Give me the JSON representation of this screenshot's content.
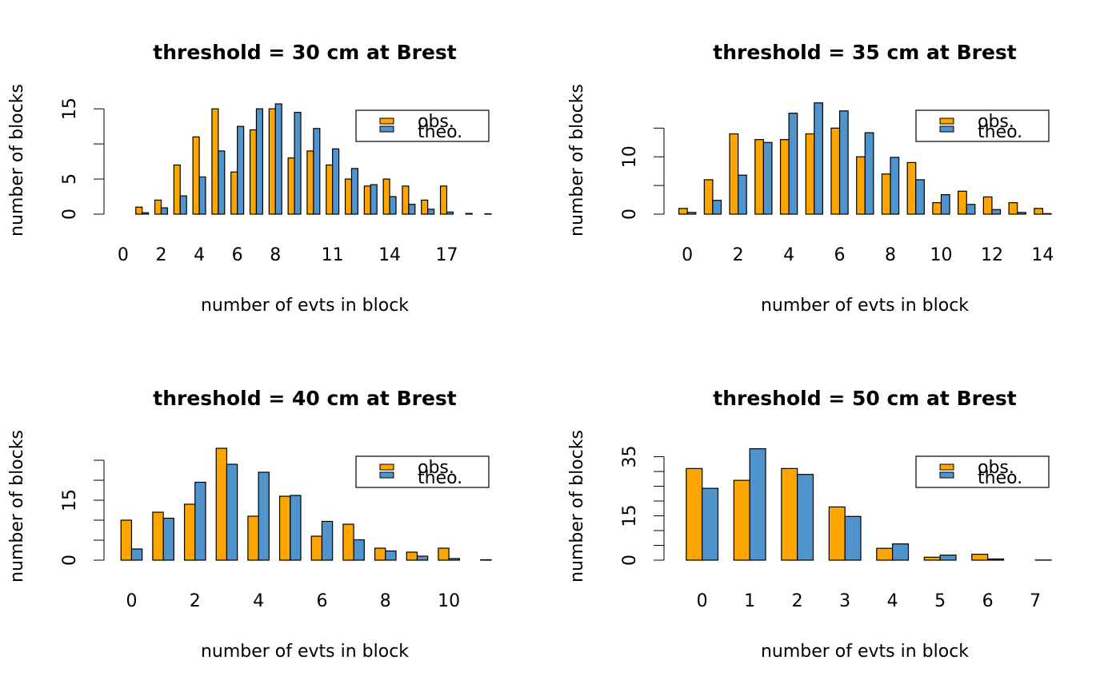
{
  "chart_data": [
    {
      "type": "bar",
      "title": "threshold = 30 cm at Brest",
      "x_label": "number of evts in block",
      "y_label": "number of blocks",
      "categories": [
        "0",
        null,
        "2",
        null,
        "4",
        null,
        "6",
        null,
        "8",
        null,
        null,
        "11",
        null,
        null,
        "14",
        null,
        null,
        "17",
        null,
        null
      ],
      "series": [
        {
          "name": "obs.",
          "color": "#FFA500",
          "values": [
            0,
            1,
            2,
            7,
            11,
            15,
            6,
            12,
            15,
            8,
            9,
            7,
            5,
            4,
            5,
            4,
            2,
            4,
            0,
            0
          ]
        },
        {
          "name": "theo.",
          "color": "#4F94CD",
          "values": [
            0,
            0.2,
            0.9,
            2.6,
            5.3,
            9,
            12.5,
            15,
            15.7,
            14.5,
            12.2,
            9.3,
            6.5,
            4.2,
            2.5,
            1.4,
            0.7,
            0.3,
            0.1,
            0.05
          ]
        }
      ],
      "ylim": [
        0,
        16.5
      ],
      "yticks": [
        0,
        5,
        {
          "value": 10,
          "label": null
        },
        15
      ],
      "legend": "topright"
    },
    {
      "type": "bar",
      "title": "threshold = 35 cm at Brest",
      "x_label": "number of evts in block",
      "y_label": "number of blocks",
      "categories": [
        "0",
        null,
        "2",
        null,
        "4",
        null,
        "6",
        null,
        "8",
        null,
        "10",
        null,
        "12",
        null,
        "14"
      ],
      "series": [
        {
          "name": "obs.",
          "color": "#FFA500",
          "values": [
            1,
            6,
            14,
            13,
            13,
            14,
            15,
            10,
            7,
            9,
            2,
            4,
            3,
            2,
            1
          ]
        },
        {
          "name": "theo.",
          "color": "#4F94CD",
          "values": [
            0.3,
            2.4,
            6.8,
            12.5,
            17.6,
            19.4,
            18,
            14.2,
            9.9,
            6,
            3.4,
            1.7,
            0.8,
            0.3,
            0.1
          ]
        }
      ],
      "ylim": [
        0,
        20.2
      ],
      "yticks": [
        0,
        {
          "value": 5,
          "label": null
        },
        10,
        {
          "value": 15,
          "label": null
        }
      ],
      "legend": "topright"
    },
    {
      "type": "bar",
      "title": "threshold = 40 cm at Brest",
      "x_label": "number of evts in block",
      "y_label": "number of blocks",
      "categories": [
        "0",
        null,
        "2",
        null,
        "4",
        null,
        "6",
        null,
        "8",
        null,
        "10",
        null
      ],
      "series": [
        {
          "name": "obs.",
          "color": "#FFA500",
          "values": [
            10,
            12,
            14,
            28,
            11,
            16,
            6,
            9,
            3,
            2,
            3,
            0
          ]
        },
        {
          "name": "theo.",
          "color": "#4F94CD",
          "values": [
            2.8,
            10.5,
            19.5,
            24,
            22,
            16.2,
            9.7,
            5.1,
            2.3,
            1,
            0.4,
            0.1
          ]
        }
      ],
      "ylim": [
        0,
        29
      ],
      "yticks": [
        0,
        {
          "value": 5,
          "label": null
        },
        {
          "value": 10,
          "label": null
        },
        15,
        {
          "value": 20,
          "label": null
        },
        {
          "value": 25,
          "label": null
        }
      ],
      "legend": "topright"
    },
    {
      "type": "bar",
      "title": "threshold = 50 cm at Brest",
      "x_label": "number of evts in block",
      "y_label": "number of blocks",
      "categories": [
        "0",
        "1",
        "2",
        "3",
        "4",
        "5",
        "6",
        "7"
      ],
      "series": [
        {
          "name": "obs.",
          "color": "#FFA500",
          "values": [
            31,
            27,
            31,
            18,
            4,
            1,
            2,
            0
          ]
        },
        {
          "name": "theo.",
          "color": "#4F94CD",
          "values": [
            24.3,
            37.7,
            29,
            14.8,
            5.5,
            1.7,
            0.4,
            0.05
          ]
        }
      ],
      "ylim": [
        0,
        39.2
      ],
      "yticks": [
        0,
        {
          "value": 5,
          "label": null
        },
        {
          "value": 10,
          "label": null
        },
        15,
        {
          "value": 20,
          "label": null
        },
        {
          "value": 25,
          "label": null
        },
        {
          "value": 30,
          "label": null
        },
        35
      ],
      "legend": "topright"
    }
  ]
}
